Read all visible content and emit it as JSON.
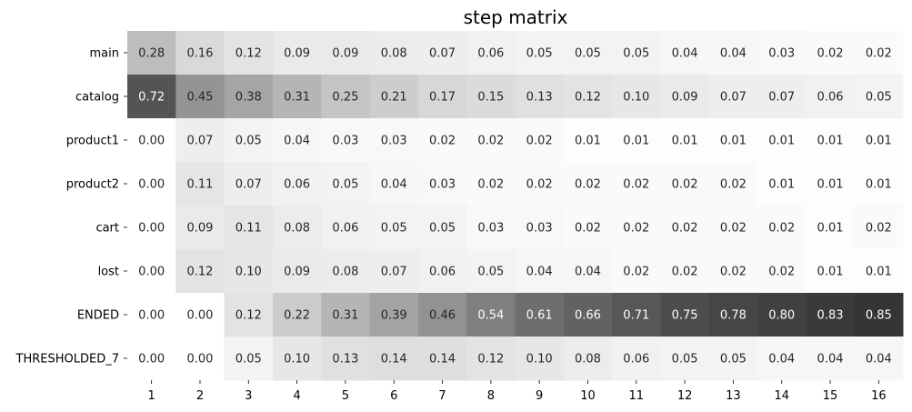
{
  "chart_data": {
    "type": "heatmap",
    "title": "step matrix",
    "xlabel": "",
    "ylabel": "",
    "colormap": "greys",
    "vlim": [
      0,
      1
    ],
    "colorbar": false,
    "value_format": "0.00",
    "x_categories": [
      "1",
      "2",
      "3",
      "4",
      "5",
      "6",
      "7",
      "8",
      "9",
      "10",
      "11",
      "12",
      "13",
      "14",
      "15",
      "16"
    ],
    "y_categories": [
      "main",
      "catalog",
      "product1",
      "product2",
      "cart",
      "lost",
      "ENDED",
      "THRESHOLDED_7"
    ],
    "values": [
      [
        0.28,
        0.16,
        0.12,
        0.09,
        0.09,
        0.08,
        0.07,
        0.06,
        0.05,
        0.05,
        0.05,
        0.04,
        0.04,
        0.03,
        0.02,
        0.02
      ],
      [
        0.72,
        0.45,
        0.38,
        0.31,
        0.25,
        0.21,
        0.17,
        0.15,
        0.13,
        0.12,
        0.1,
        0.09,
        0.07,
        0.07,
        0.06,
        0.05
      ],
      [
        0.0,
        0.07,
        0.05,
        0.04,
        0.03,
        0.03,
        0.02,
        0.02,
        0.02,
        0.01,
        0.01,
        0.01,
        0.01,
        0.01,
        0.01,
        0.01
      ],
      [
        0.0,
        0.11,
        0.07,
        0.06,
        0.05,
        0.04,
        0.03,
        0.02,
        0.02,
        0.02,
        0.02,
        0.02,
        0.02,
        0.01,
        0.01,
        0.01
      ],
      [
        0.0,
        0.09,
        0.11,
        0.08,
        0.06,
        0.05,
        0.05,
        0.03,
        0.03,
        0.02,
        0.02,
        0.02,
        0.02,
        0.02,
        0.01,
        0.02
      ],
      [
        0.0,
        0.12,
        0.1,
        0.09,
        0.08,
        0.07,
        0.06,
        0.05,
        0.04,
        0.04,
        0.02,
        0.02,
        0.02,
        0.02,
        0.01,
        0.01
      ],
      [
        0.0,
        0.0,
        0.12,
        0.22,
        0.31,
        0.39,
        0.46,
        0.54,
        0.61,
        0.66,
        0.71,
        0.75,
        0.78,
        0.8,
        0.83,
        0.85
      ],
      [
        0.0,
        0.0,
        0.05,
        0.1,
        0.13,
        0.14,
        0.14,
        0.12,
        0.1,
        0.08,
        0.06,
        0.05,
        0.05,
        0.04,
        0.04,
        0.04
      ]
    ]
  }
}
